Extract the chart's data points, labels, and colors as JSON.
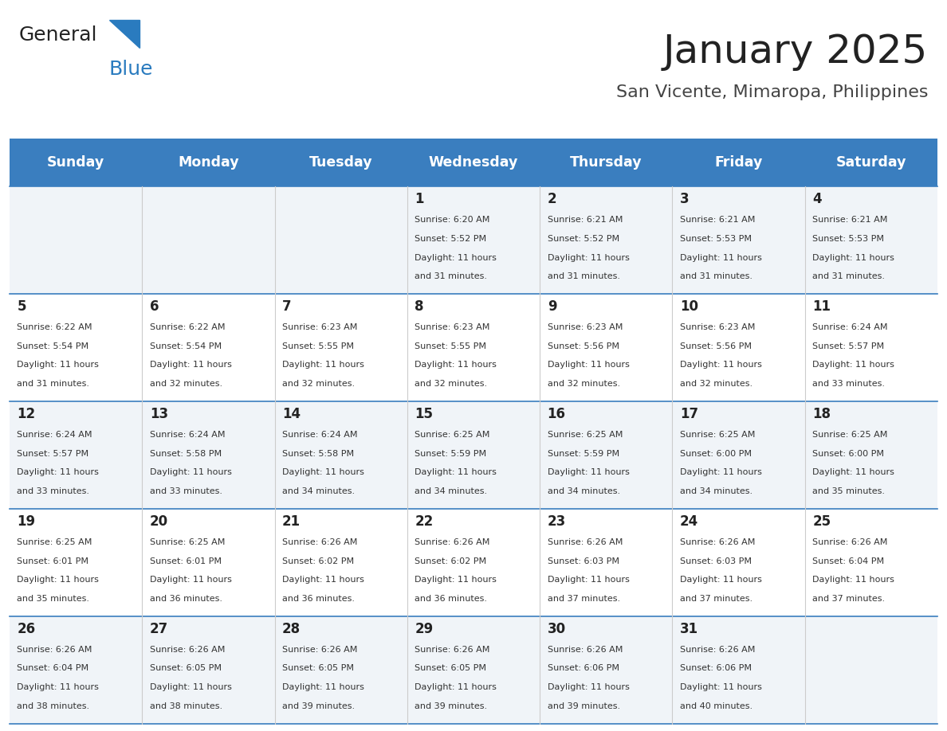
{
  "title": "January 2025",
  "subtitle": "San Vicente, Mimaropa, Philippines",
  "days_of_week": [
    "Sunday",
    "Monday",
    "Tuesday",
    "Wednesday",
    "Thursday",
    "Friday",
    "Saturday"
  ],
  "header_bg": "#3a7ebf",
  "header_text": "#ffffff",
  "row_bg_odd": "#f0f4f8",
  "row_bg_even": "#ffffff",
  "cell_border": "#3a7ebf",
  "title_color": "#222222",
  "subtitle_color": "#444444",
  "day_num_color": "#222222",
  "cell_text_color": "#333333",
  "logo_general_color": "#222222",
  "logo_blue_color": "#2a7bbf",
  "calendar_data": [
    [
      null,
      null,
      null,
      {
        "day": 1,
        "sunrise": "6:20 AM",
        "sunset": "5:52 PM",
        "daylight": "11 hours and 31 minutes."
      },
      {
        "day": 2,
        "sunrise": "6:21 AM",
        "sunset": "5:52 PM",
        "daylight": "11 hours and 31 minutes."
      },
      {
        "day": 3,
        "sunrise": "6:21 AM",
        "sunset": "5:53 PM",
        "daylight": "11 hours and 31 minutes."
      },
      {
        "day": 4,
        "sunrise": "6:21 AM",
        "sunset": "5:53 PM",
        "daylight": "11 hours and 31 minutes."
      }
    ],
    [
      {
        "day": 5,
        "sunrise": "6:22 AM",
        "sunset": "5:54 PM",
        "daylight": "11 hours and 31 minutes."
      },
      {
        "day": 6,
        "sunrise": "6:22 AM",
        "sunset": "5:54 PM",
        "daylight": "11 hours and 32 minutes."
      },
      {
        "day": 7,
        "sunrise": "6:23 AM",
        "sunset": "5:55 PM",
        "daylight": "11 hours and 32 minutes."
      },
      {
        "day": 8,
        "sunrise": "6:23 AM",
        "sunset": "5:55 PM",
        "daylight": "11 hours and 32 minutes."
      },
      {
        "day": 9,
        "sunrise": "6:23 AM",
        "sunset": "5:56 PM",
        "daylight": "11 hours and 32 minutes."
      },
      {
        "day": 10,
        "sunrise": "6:23 AM",
        "sunset": "5:56 PM",
        "daylight": "11 hours and 32 minutes."
      },
      {
        "day": 11,
        "sunrise": "6:24 AM",
        "sunset": "5:57 PM",
        "daylight": "11 hours and 33 minutes."
      }
    ],
    [
      {
        "day": 12,
        "sunrise": "6:24 AM",
        "sunset": "5:57 PM",
        "daylight": "11 hours and 33 minutes."
      },
      {
        "day": 13,
        "sunrise": "6:24 AM",
        "sunset": "5:58 PM",
        "daylight": "11 hours and 33 minutes."
      },
      {
        "day": 14,
        "sunrise": "6:24 AM",
        "sunset": "5:58 PM",
        "daylight": "11 hours and 34 minutes."
      },
      {
        "day": 15,
        "sunrise": "6:25 AM",
        "sunset": "5:59 PM",
        "daylight": "11 hours and 34 minutes."
      },
      {
        "day": 16,
        "sunrise": "6:25 AM",
        "sunset": "5:59 PM",
        "daylight": "11 hours and 34 minutes."
      },
      {
        "day": 17,
        "sunrise": "6:25 AM",
        "sunset": "6:00 PM",
        "daylight": "11 hours and 34 minutes."
      },
      {
        "day": 18,
        "sunrise": "6:25 AM",
        "sunset": "6:00 PM",
        "daylight": "11 hours and 35 minutes."
      }
    ],
    [
      {
        "day": 19,
        "sunrise": "6:25 AM",
        "sunset": "6:01 PM",
        "daylight": "11 hours and 35 minutes."
      },
      {
        "day": 20,
        "sunrise": "6:25 AM",
        "sunset": "6:01 PM",
        "daylight": "11 hours and 36 minutes."
      },
      {
        "day": 21,
        "sunrise": "6:26 AM",
        "sunset": "6:02 PM",
        "daylight": "11 hours and 36 minutes."
      },
      {
        "day": 22,
        "sunrise": "6:26 AM",
        "sunset": "6:02 PM",
        "daylight": "11 hours and 36 minutes."
      },
      {
        "day": 23,
        "sunrise": "6:26 AM",
        "sunset": "6:03 PM",
        "daylight": "11 hours and 37 minutes."
      },
      {
        "day": 24,
        "sunrise": "6:26 AM",
        "sunset": "6:03 PM",
        "daylight": "11 hours and 37 minutes."
      },
      {
        "day": 25,
        "sunrise": "6:26 AM",
        "sunset": "6:04 PM",
        "daylight": "11 hours and 37 minutes."
      }
    ],
    [
      {
        "day": 26,
        "sunrise": "6:26 AM",
        "sunset": "6:04 PM",
        "daylight": "11 hours and 38 minutes."
      },
      {
        "day": 27,
        "sunrise": "6:26 AM",
        "sunset": "6:05 PM",
        "daylight": "11 hours and 38 minutes."
      },
      {
        "day": 28,
        "sunrise": "6:26 AM",
        "sunset": "6:05 PM",
        "daylight": "11 hours and 39 minutes."
      },
      {
        "day": 29,
        "sunrise": "6:26 AM",
        "sunset": "6:05 PM",
        "daylight": "11 hours and 39 minutes."
      },
      {
        "day": 30,
        "sunrise": "6:26 AM",
        "sunset": "6:06 PM",
        "daylight": "11 hours and 39 minutes."
      },
      {
        "day": 31,
        "sunrise": "6:26 AM",
        "sunset": "6:06 PM",
        "daylight": "11 hours and 40 minutes."
      },
      null
    ]
  ]
}
